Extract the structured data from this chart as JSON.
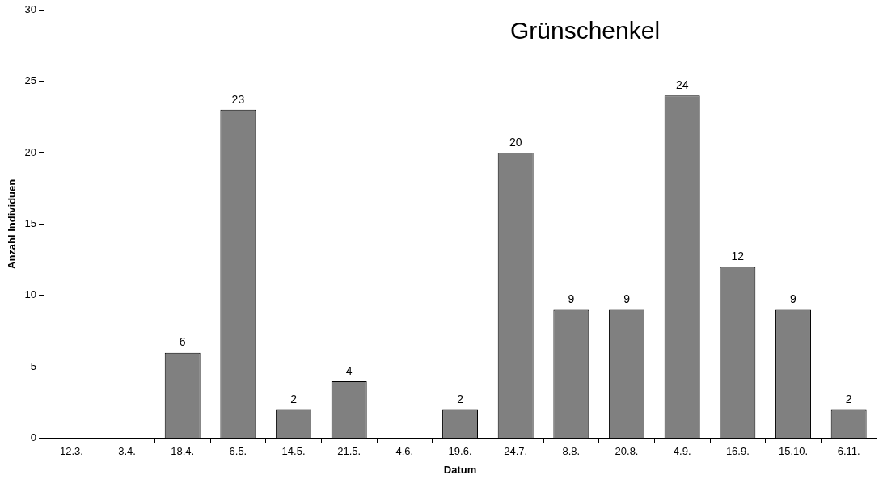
{
  "chart_data": {
    "type": "bar",
    "title": "Grünschenkel",
    "xlabel": "Datum",
    "ylabel": "Anzahl Individuen",
    "categories": [
      "12.3.",
      "3.4.",
      "18.4.",
      "6.5.",
      "14.5.",
      "21.5.",
      "4.6.",
      "19.6.",
      "24.7.",
      "8.8.",
      "20.8.",
      "4.9.",
      "16.9.",
      "15.10.",
      "6.11."
    ],
    "values": [
      0,
      0,
      6,
      23,
      2,
      4,
      0,
      2,
      20,
      9,
      9,
      24,
      12,
      9,
      2
    ],
    "value_labels": [
      null,
      null,
      "6",
      "23",
      "2",
      "4",
      null,
      "2",
      "20",
      "9",
      "9",
      "24",
      "12",
      "9",
      "2"
    ],
    "color": "#808080",
    "ylim": [
      0,
      30
    ],
    "yticks": [
      0,
      5,
      10,
      15,
      20,
      25,
      30
    ],
    "grid": false,
    "legend": false
  }
}
